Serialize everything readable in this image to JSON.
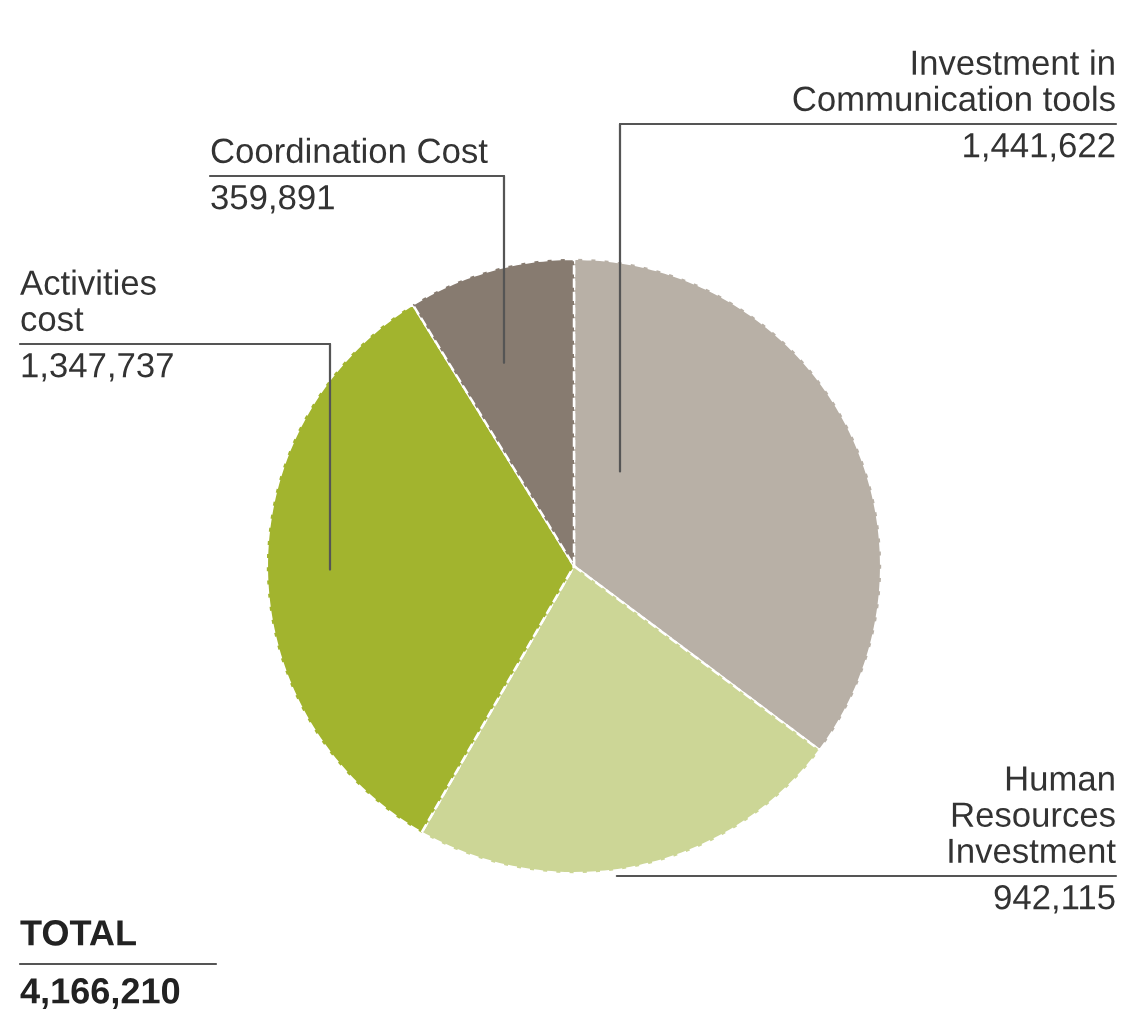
{
  "chart_data": {
    "type": "pie",
    "categories": [
      "Investment in\nCommunication tools",
      "Human\nResources\nInvestment",
      "Activities\ncost",
      "Coordination Cost"
    ],
    "values": [
      1441622,
      942115,
      1347737,
      359891
    ],
    "value_labels": [
      "1,441,622",
      "942,115",
      "1,347,737",
      "359,891"
    ],
    "colors": [
      "#b8b0a6",
      "#ccd696",
      "#a2b42e",
      "#877b70"
    ],
    "annotations": [
      "TOTAL",
      "4,166,210"
    ]
  }
}
